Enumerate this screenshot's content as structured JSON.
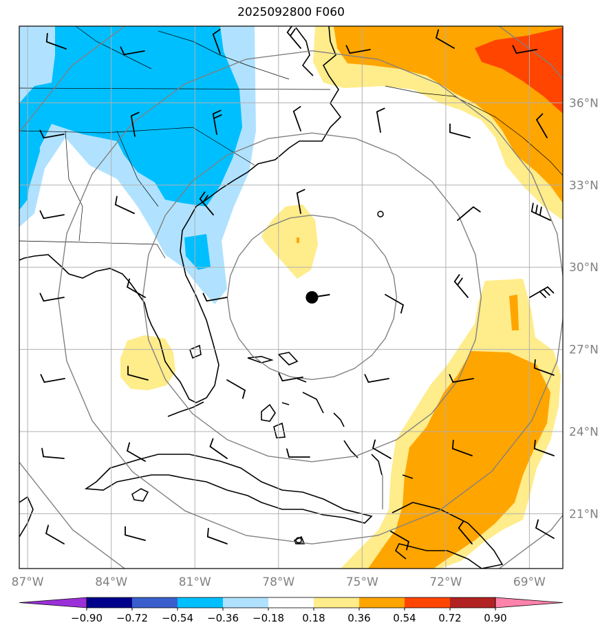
{
  "title": "2025092800 F060",
  "projection": {
    "lon_min": -87.3,
    "lon_max": -67.8,
    "lat_min": 19.0,
    "lat_max": 38.8
  },
  "lat_ticks": [
    {
      "value": 36,
      "label": "36°N"
    },
    {
      "value": 33,
      "label": "33°N"
    },
    {
      "value": 30,
      "label": "30°N"
    },
    {
      "value": 27,
      "label": "27°N"
    },
    {
      "value": 24,
      "label": "24°N"
    },
    {
      "value": 21,
      "label": "21°N"
    }
  ],
  "lon_ticks": [
    {
      "value": -87,
      "label": "87°W"
    },
    {
      "value": -84,
      "label": "84°W"
    },
    {
      "value": -81,
      "label": "81°W"
    },
    {
      "value": -78,
      "label": "78°W"
    },
    {
      "value": -75,
      "label": "75°W"
    },
    {
      "value": -72,
      "label": "72°W"
    },
    {
      "value": -69,
      "label": "69°W"
    }
  ],
  "colorbar": {
    "ticks": [
      "−0.90",
      "−0.72",
      "−0.54",
      "−0.36",
      "−0.18",
      "0.18",
      "0.36",
      "0.54",
      "0.72",
      "0.90"
    ],
    "colors": [
      "#9b30d9",
      "#00008b",
      "#3a5fcd",
      "#00bfff",
      "#b0e2ff",
      "#ffffff",
      "#ffec8b",
      "#ffa500",
      "#ff4500",
      "#b22222",
      "#ff82ab"
    ]
  },
  "storm_center": {
    "lon": -76.8,
    "lat": 28.9
  },
  "range_rings_deg": [
    3,
    6,
    9,
    12
  ]
}
